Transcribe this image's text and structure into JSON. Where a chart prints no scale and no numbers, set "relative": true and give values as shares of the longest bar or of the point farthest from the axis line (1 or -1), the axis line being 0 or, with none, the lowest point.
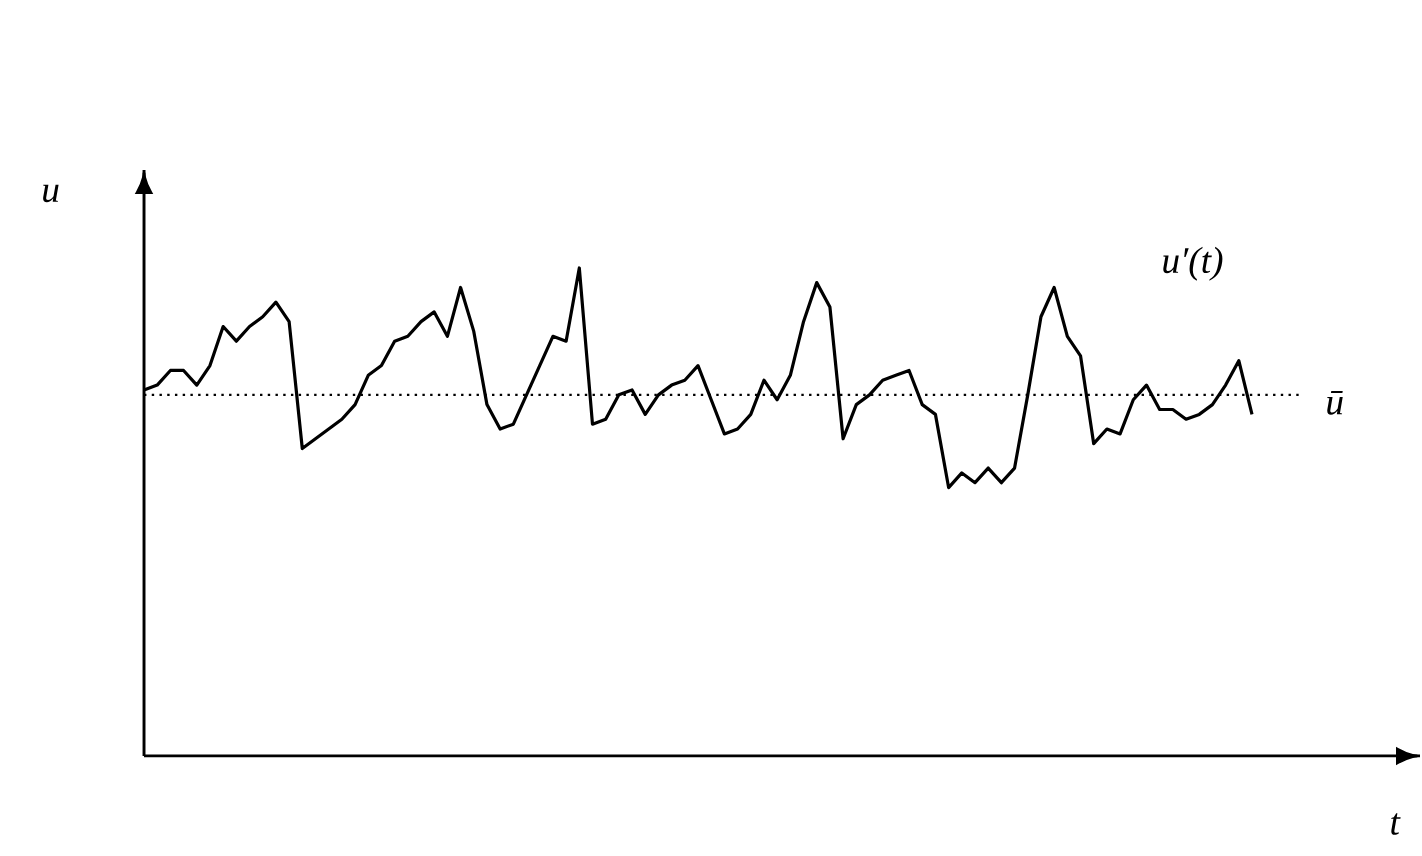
{
  "chart_data": {
    "type": "line",
    "relative": true,
    "xlabel": "t",
    "ylabel": "u",
    "tick_labels": false,
    "categories": [
      null,
      null,
      null,
      null,
      null,
      null,
      null,
      null,
      null,
      null,
      null,
      null,
      null,
      null,
      null,
      null,
      null,
      null,
      null,
      null,
      null,
      null,
      null,
      null,
      null,
      null,
      null,
      null,
      null,
      null,
      null,
      null,
      null,
      null,
      null,
      null,
      null,
      null,
      null,
      null,
      null,
      null,
      null,
      null,
      null,
      null,
      null,
      null,
      null,
      null,
      null,
      null,
      null,
      null,
      null,
      null,
      null,
      null,
      null,
      null,
      null,
      null,
      null,
      null,
      null,
      null,
      null,
      null,
      null,
      null,
      null,
      null,
      null,
      null,
      null,
      null,
      null,
      null,
      null,
      null,
      null,
      null,
      null,
      null,
      null
    ],
    "series": [
      {
        "name": "u′(t)",
        "color": "#000000",
        "values": [
          0.75,
          0.76,
          0.79,
          0.79,
          0.76,
          0.8,
          0.88,
          0.85,
          0.88,
          0.9,
          0.93,
          0.89,
          0.63,
          0.65,
          0.67,
          0.69,
          0.72,
          0.78,
          0.8,
          0.85,
          0.86,
          0.89,
          0.91,
          0.86,
          0.96,
          0.87,
          0.72,
          0.67,
          0.68,
          0.74,
          0.8,
          0.86,
          0.85,
          1.0,
          0.68,
          0.69,
          0.74,
          0.75,
          0.7,
          0.74,
          0.76,
          0.77,
          0.8,
          0.73,
          0.66,
          0.67,
          0.7,
          0.77,
          0.73,
          0.78,
          0.89,
          0.97,
          0.92,
          0.65,
          0.72,
          0.74,
          0.77,
          0.78,
          0.79,
          0.72,
          0.7,
          0.55,
          0.58,
          0.56,
          0.59,
          0.56,
          0.59,
          0.74,
          0.9,
          0.96,
          0.86,
          0.82,
          0.64,
          0.67,
          0.66,
          0.73,
          0.76,
          0.71,
          0.71,
          0.69,
          0.7,
          0.72,
          0.76,
          0.81,
          0.7
        ]
      }
    ],
    "ref_lines": [
      {
        "axis": "y",
        "value": 0.74,
        "label": "ū",
        "line_style": "dotted"
      }
    ]
  }
}
